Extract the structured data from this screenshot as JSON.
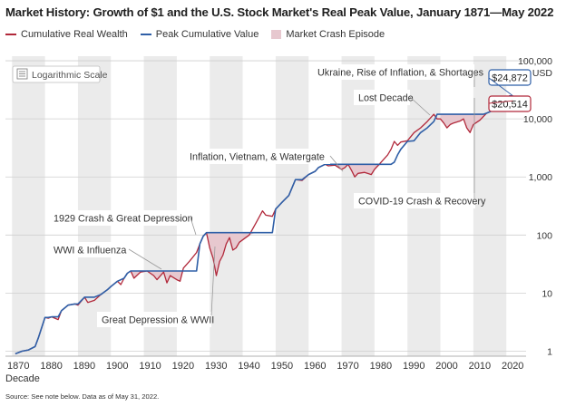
{
  "title": "Market History: Growth of $1 and the U.S. Stock Market's Real Peak Value, January 1871—May 2022",
  "source": "Source: See note below. Data as of May 31, 2022.",
  "colors": {
    "cumulative": "#b1283a",
    "peak": "#2f5fa7",
    "crash": "#e7c8cf",
    "band": "#ebebeb"
  },
  "scale_button": {
    "label": "Logarithmic Scale",
    "icon": "list-icon"
  },
  "chart_data": {
    "type": "line",
    "scale": "log",
    "xlabel": "Decade",
    "ylabel": "",
    "xlim": [
      1868,
      2026
    ],
    "ylim": [
      0.82,
      120000
    ],
    "y_unit": "USD",
    "grid": true,
    "legend_position": "top-left",
    "legend": [
      {
        "label": "Cumulative Real Wealth",
        "type": "line",
        "color": "#b1283a"
      },
      {
        "label": "Peak Cumulative Value",
        "type": "line",
        "color": "#2f5fa7"
      },
      {
        "label": "Market Crash Episode",
        "type": "area",
        "color": "#e7c8cf"
      }
    ],
    "x_ticks": [
      "1870",
      "1880",
      "1890",
      "1900",
      "1910",
      "1920",
      "1930",
      "1940",
      "1950",
      "1960",
      "1970",
      "1980",
      "1990",
      "2000",
      "2010",
      "2020"
    ],
    "y_ticks": [
      {
        "value": 1,
        "label": "1"
      },
      {
        "value": 10,
        "label": "10"
      },
      {
        "value": 100,
        "label": "100"
      },
      {
        "value": 1000,
        "label": "1,000"
      },
      {
        "value": 10000,
        "label": "10,000"
      },
      {
        "value": 100000,
        "label": "100,000"
      }
    ],
    "series": [
      {
        "name": "Cumulative Real Wealth",
        "color": "#b1283a",
        "x": [
          1871,
          1873,
          1875,
          1877,
          1878,
          1880,
          1881,
          1882,
          1884,
          1885,
          1887,
          1889,
          1890,
          1892,
          1893,
          1895,
          1897,
          1899,
          1900,
          1902,
          1903,
          1904,
          1905,
          1906,
          1907,
          1909,
          1911,
          1913,
          1914,
          1916,
          1917,
          1918,
          1920,
          1921,
          1922,
          1924,
          1926,
          1927,
          1928,
          1929,
          1930,
          1931,
          1932,
          1933,
          1934,
          1935,
          1936,
          1937,
          1938,
          1939,
          1942,
          1944,
          1946,
          1947,
          1949,
          1950,
          1952,
          1954,
          1956,
          1958,
          1960,
          1962,
          1963,
          1965,
          1966,
          1968,
          1970,
          1971,
          1972,
          1973,
          1974,
          1975,
          1977,
          1979,
          1980,
          1982,
          1984,
          1985,
          1986,
          1987,
          1988,
          1990,
          1992,
          1994,
          1996,
          1998,
          1999,
          2000,
          2001,
          2002,
          2003,
          2004,
          2006,
          2007,
          2008,
          2009,
          2010,
          2012,
          2014,
          2016,
          2018,
          2019,
          2020,
          2021,
          2022
        ],
        "y": [
          0.9,
          1.0,
          1.05,
          1.2,
          1.7,
          3.8,
          3.7,
          3.9,
          3.5,
          5.0,
          6.2,
          6.5,
          6.2,
          8.5,
          6.9,
          7.5,
          9.5,
          11.5,
          13,
          16,
          14,
          18,
          22,
          24,
          18,
          23,
          24,
          20,
          17,
          23,
          15,
          20,
          17,
          16,
          27,
          36,
          50,
          70,
          95,
          110,
          60,
          40,
          20,
          35,
          45,
          70,
          90,
          55,
          60,
          75,
          100,
          160,
          260,
          220,
          210,
          280,
          370,
          480,
          900,
          870,
          1100,
          1250,
          1450,
          1650,
          1550,
          1600,
          1350,
          1450,
          1650,
          1300,
          1000,
          1150,
          1200,
          1100,
          1350,
          1800,
          2400,
          3000,
          4100,
          3500,
          4000,
          4200,
          5800,
          7000,
          9000,
          12000,
          10000,
          10000,
          8500,
          7000,
          8000,
          8500,
          9200,
          10000,
          7000,
          5800,
          8000,
          9500,
          12500,
          14000,
          16500,
          16000,
          17000,
          24872,
          20514
        ]
      },
      {
        "name": "Peak Cumulative Value",
        "color": "#2f5fa7",
        "x": [
          1871,
          1873,
          1875,
          1877,
          1878,
          1880,
          1881,
          1882,
          1884,
          1885,
          1887,
          1889,
          1890,
          1892,
          1895,
          1897,
          1899,
          1900,
          1902,
          1904,
          1905,
          1906,
          1926,
          1927,
          1928,
          1929,
          1949,
          1950,
          1952,
          1954,
          1956,
          1958,
          1960,
          1962,
          1963,
          1965,
          1966,
          1968,
          1985,
          1986,
          1987,
          1988,
          1990,
          1992,
          1994,
          1996,
          1998,
          1999,
          2013,
          2014,
          2016,
          2018,
          2019,
          2020,
          2021,
          2022
        ],
        "y": [
          0.9,
          1.0,
          1.05,
          1.2,
          1.7,
          3.8,
          3.8,
          3.9,
          3.9,
          5.0,
          6.2,
          6.5,
          6.5,
          8.5,
          8.5,
          9.5,
          11.5,
          13,
          16,
          18,
          22,
          24,
          24,
          70,
          95,
          110,
          110,
          280,
          370,
          480,
          900,
          900,
          1100,
          1250,
          1450,
          1650,
          1650,
          1650,
          1650,
          1800,
          2400,
          3000,
          4100,
          4200,
          5800,
          7000,
          9000,
          12000,
          12000,
          12500,
          14000,
          16500,
          16500,
          17000,
          24872,
          24872
        ]
      }
    ],
    "crash_episodes": [
      {
        "start": 1906,
        "end": 1926
      },
      {
        "start": 1929,
        "end": 1949
      },
      {
        "start": 1968,
        "end": 1985
      },
      {
        "start": 2000,
        "end": 2013
      },
      {
        "start": 2022,
        "end": 2022.4
      }
    ],
    "annotations": [
      {
        "text": "Ukraine, Rise of Inflation, & Shortages",
        "year": 2022,
        "value": 24872
      },
      {
        "text": "Lost Decade",
        "year": 2000,
        "value": 12000
      },
      {
        "text": "Inflation, Vietnam, & Watergate",
        "year": 1968,
        "value": 1650
      },
      {
        "text": "COVID-19 Crash & Recovery",
        "year": 2020,
        "value": 16500
      },
      {
        "text": "1929 Crash & Great Depression",
        "year": 1929,
        "value": 110
      },
      {
        "text": "WWI & Influenza",
        "year": 1906,
        "value": 24
      },
      {
        "text": "Great Depression & WWII",
        "year": 1932,
        "value": 20
      }
    ],
    "data_labels": [
      {
        "text": "$24,872",
        "value": 24872,
        "series": "Peak Cumulative Value"
      },
      {
        "text": "$20,514",
        "value": 20514,
        "series": "Cumulative Real Wealth"
      }
    ]
  }
}
